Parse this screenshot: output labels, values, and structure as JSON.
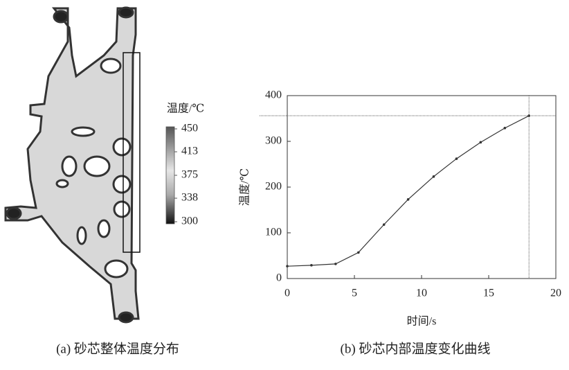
{
  "chart_data": [
    {
      "type": "colorbar",
      "title": "温度/℃",
      "caption": "(a) 砂芯整体温度分布",
      "clim": [
        300,
        450
      ],
      "ticks": [
        450,
        413,
        375,
        338,
        300
      ]
    },
    {
      "type": "line",
      "caption": "(b) 砂芯内部温度变化曲线",
      "x_label": "时间/s",
      "y_label": "温度/℃",
      "x": [
        0,
        1.8,
        3.6,
        5.3,
        7.2,
        9.0,
        10.9,
        12.6,
        14.4,
        16.2,
        18.0
      ],
      "series": [
        {
          "name": "温度",
          "color": "#333333",
          "values": [
            27,
            29,
            32,
            57,
            118,
            173,
            223,
            262,
            298,
            329,
            356
          ]
        }
      ],
      "xlim": [
        0,
        20
      ],
      "xticks": [
        0,
        5,
        10,
        15,
        20
      ],
      "ylim": [
        0,
        400
      ],
      "yticks": [
        0,
        100,
        200,
        300,
        400
      ],
      "hline": 356,
      "vline": 18
    }
  ]
}
